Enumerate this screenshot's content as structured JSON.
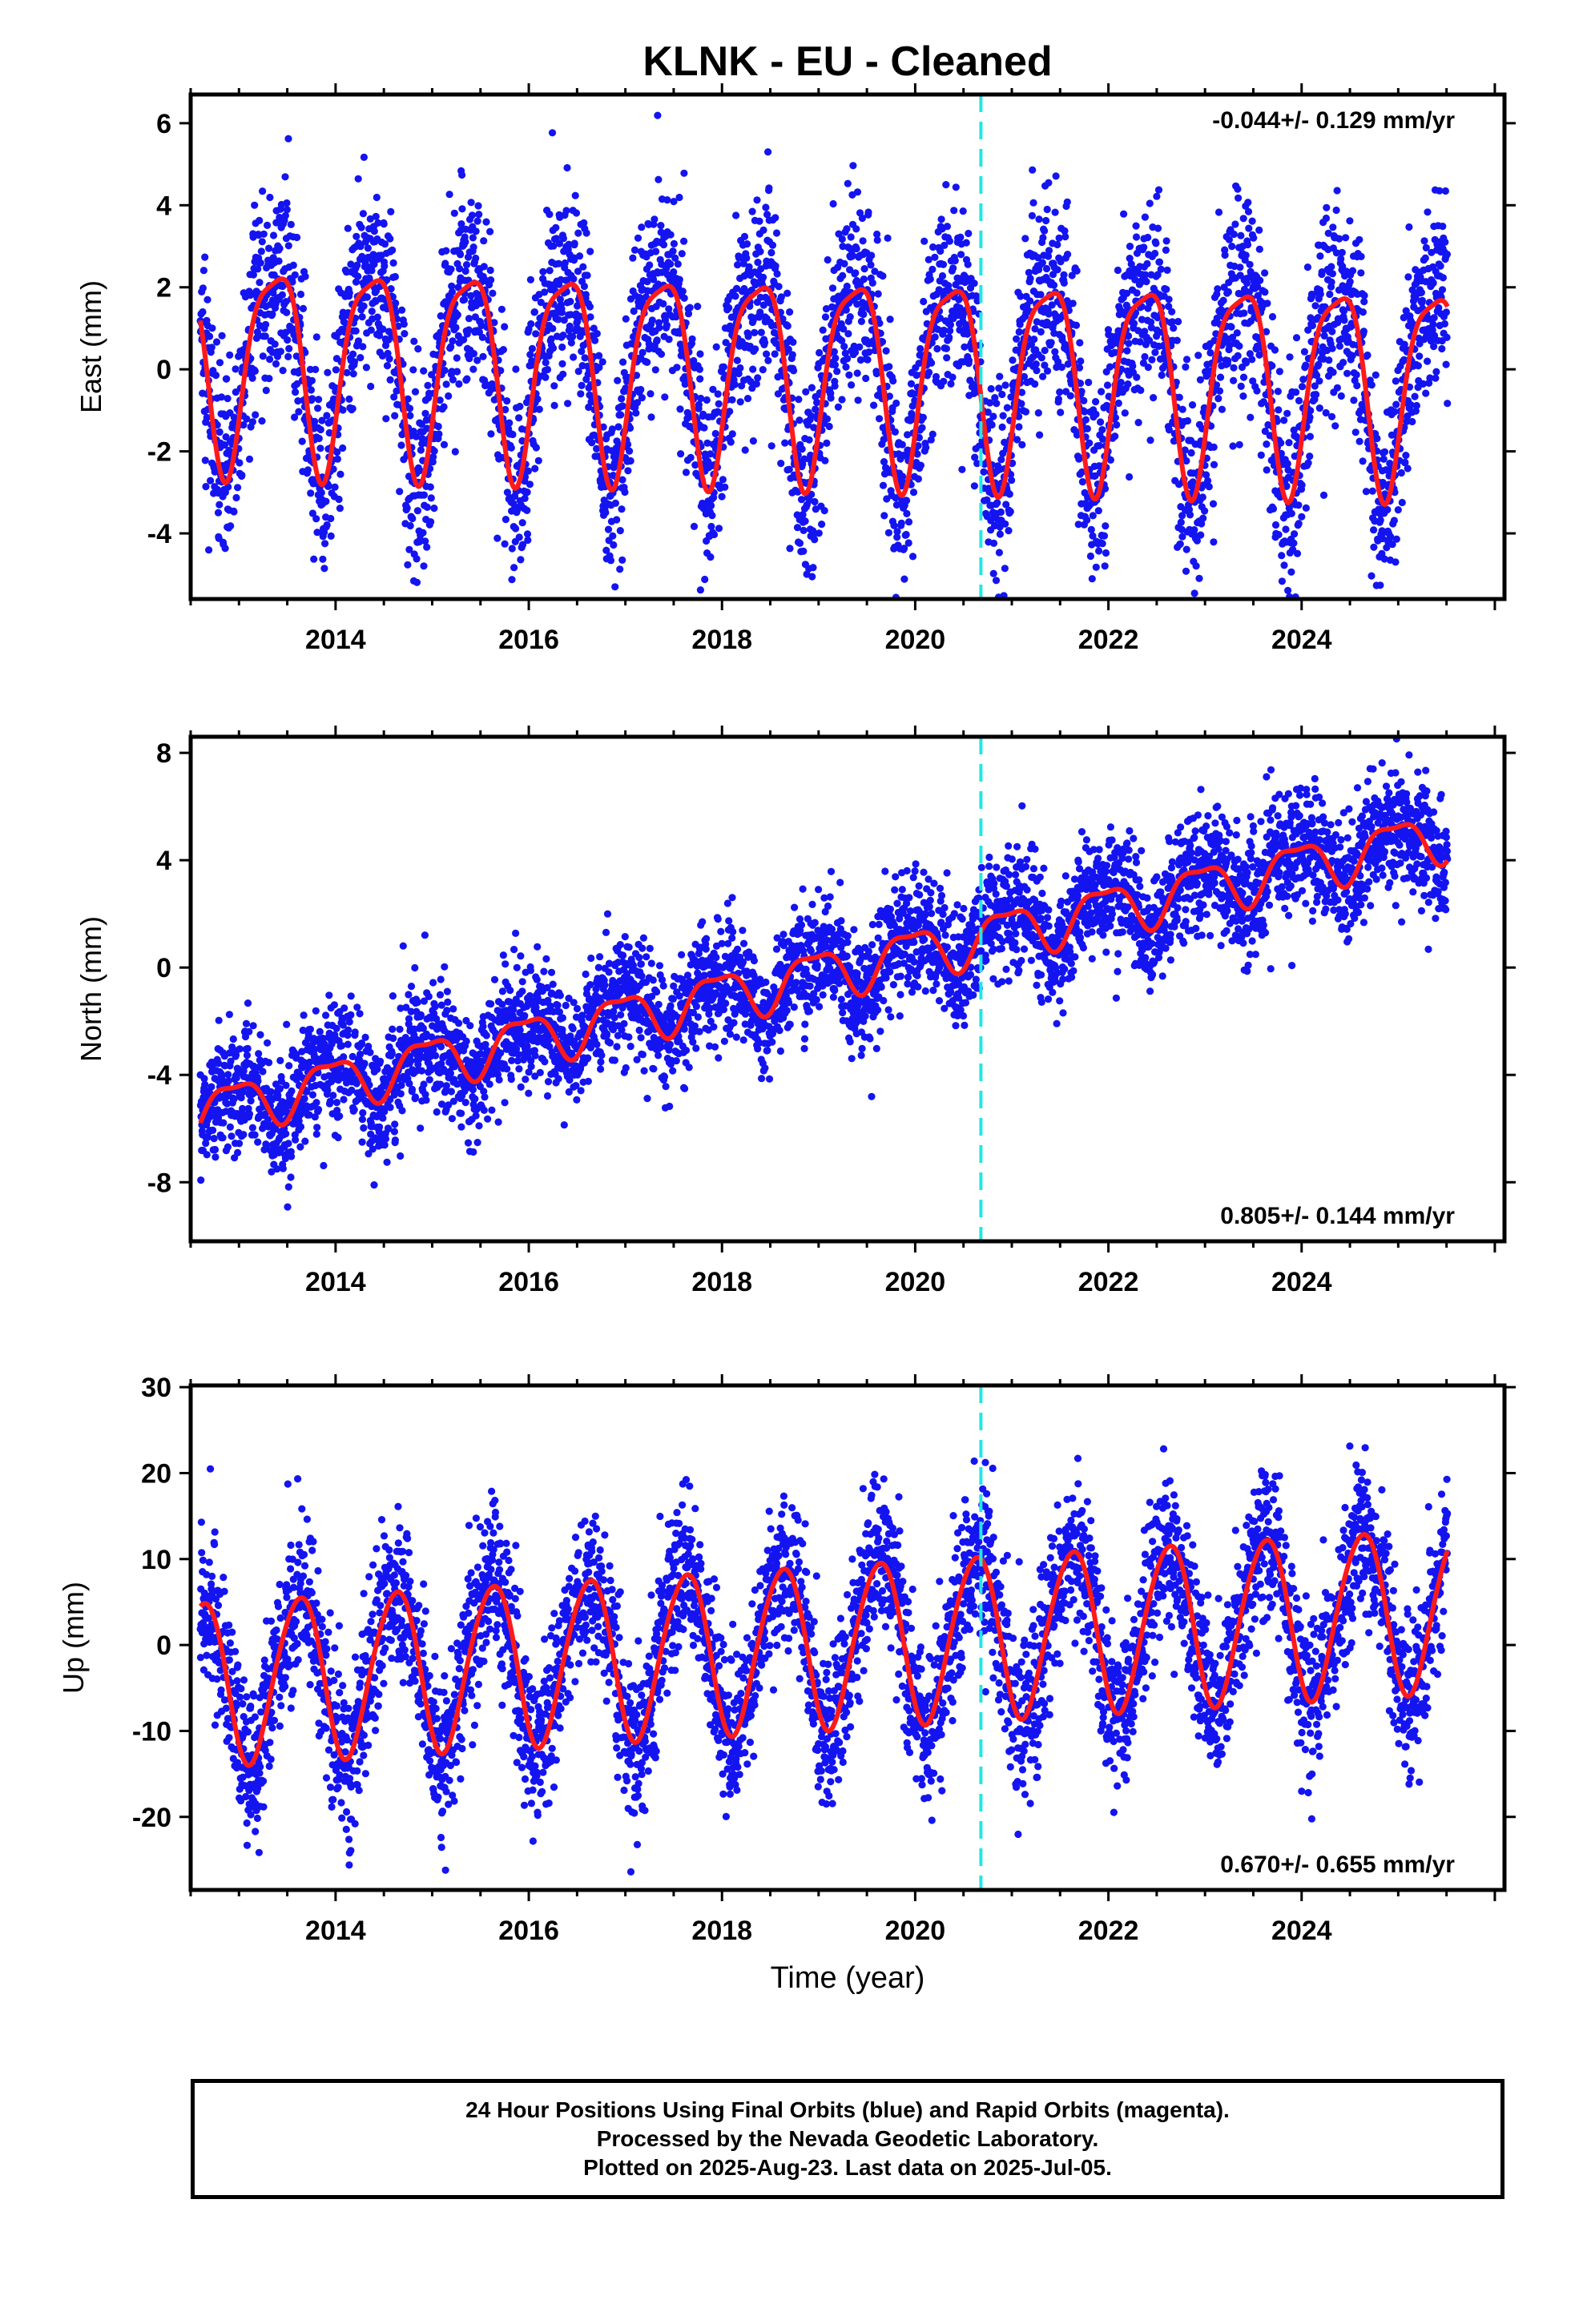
{
  "title": "KLNK  - EU - Cleaned",
  "colors": {
    "data": "#1414f0",
    "model": "#ff1a1a",
    "marker": "#22e6e6",
    "frame": "#000000"
  },
  "chart_data": [
    {
      "type": "scatter",
      "ylabel": "East (mm)",
      "xlabel": "",
      "xlim": [
        2012.5,
        2026.1
      ],
      "ylim": [
        -5.6,
        6.7
      ],
      "yticks": [
        -4,
        -2,
        0,
        2,
        4,
        6
      ],
      "xticks": [
        2014,
        2016,
        2018,
        2020,
        2022,
        2024
      ],
      "rate_label": "-0.044+/- 0.129 mm/yr",
      "rate_position": "top-right",
      "start": 2012.6,
      "end": 2025.51,
      "offset": 0.0,
      "trend": -0.044,
      "annual_amplitude": 2.45,
      "annual_peak": 0.37,
      "semiannual_amplitude": 0.6,
      "semiannual_phase": 0.1,
      "noise_sd": 1.2,
      "marker_x": 2020.68
    },
    {
      "type": "scatter",
      "ylabel": "North (mm)",
      "xlabel": "",
      "xlim": [
        2012.5,
        2026.1
      ],
      "ylim": [
        -10.2,
        8.6
      ],
      "yticks": [
        -8,
        -4,
        0,
        4,
        8
      ],
      "xticks": [
        2014,
        2016,
        2018,
        2020,
        2022,
        2024
      ],
      "rate_label": "0.805+/- 0.144 mm/yr",
      "rate_position": "bottom-right",
      "start": 2012.6,
      "end": 2025.51,
      "offset": -0.2,
      "trend": 0.805,
      "annual_amplitude": 0.9,
      "annual_peak": 0.95,
      "semiannual_amplitude": 0.3,
      "semiannual_phase": 0.2,
      "noise_sd": 1.1,
      "marker_x": 2020.68
    },
    {
      "type": "scatter",
      "ylabel": "Up (mm)",
      "xlabel": "Time (year)",
      "xlim": [
        2012.5,
        2026.1
      ],
      "ylim": [
        -28.5,
        30.2
      ],
      "yticks": [
        -20,
        -10,
        0,
        10,
        20,
        30
      ],
      "xticks": [
        2014,
        2016,
        2018,
        2020,
        2022,
        2024
      ],
      "rate_label": "0.670+/- 0.655 mm/yr",
      "rate_position": "bottom-right",
      "start": 2012.6,
      "end": 2025.51,
      "offset": 0.0,
      "trend": 0.67,
      "annual_amplitude": 9.5,
      "annual_peak": 0.62,
      "semiannual_amplitude": 0.8,
      "semiannual_phase": 0.3,
      "noise_sd": 4.6,
      "marker_x": 2020.68
    }
  ],
  "caption": {
    "line1": "24 Hour Positions Using Final Orbits (blue) and Rapid Orbits (magenta).",
    "line2": "Processed by the Nevada Geodetic Laboratory.",
    "line3": "Plotted on 2025-Aug-23. Last data on 2025-Jul-05."
  }
}
